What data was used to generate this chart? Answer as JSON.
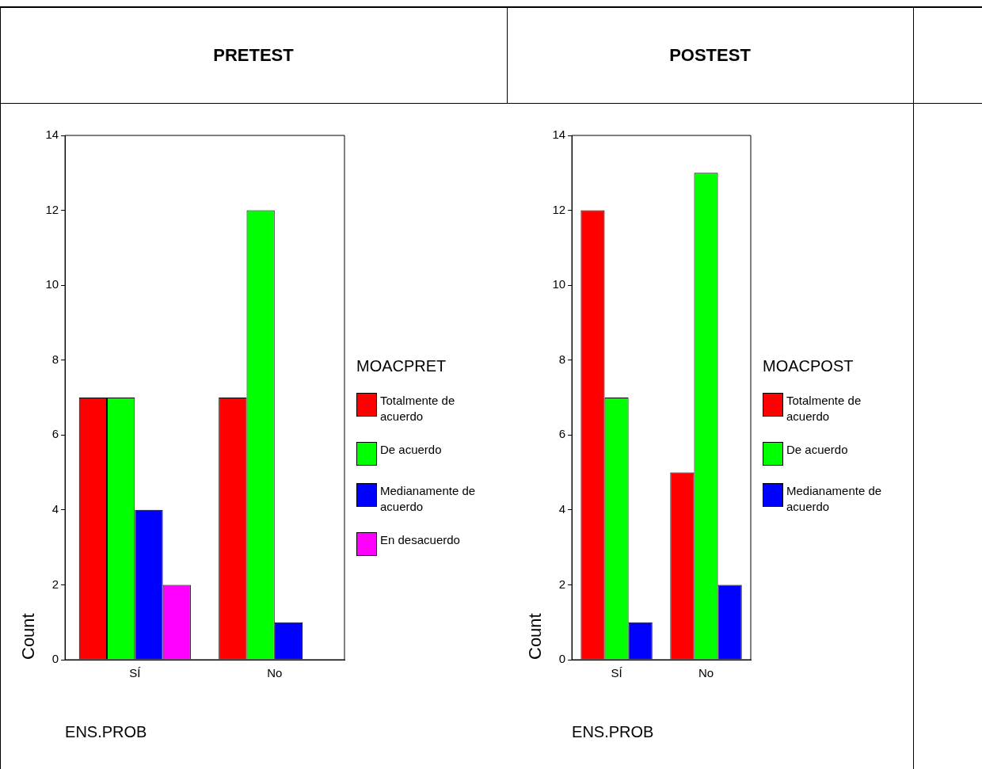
{
  "chart_data": [
    {
      "type": "bar",
      "title": "PRETEST",
      "xlabel": "ENS.PROB",
      "ylabel": "Count",
      "legend_title": "MOACPRET",
      "categories": [
        "SÍ",
        "No"
      ],
      "series": [
        {
          "name": "Totalmente de acuerdo",
          "color": "#ff0000",
          "values": [
            7,
            7
          ]
        },
        {
          "name": "De acuerdo",
          "color": "#00ff00",
          "values": [
            7,
            12
          ]
        },
        {
          "name": "Medianamente de acuerdo",
          "color": "#0000ff",
          "values": [
            4,
            1
          ]
        },
        {
          "name": "En desacuerdo",
          "color": "#ff00ff",
          "values": [
            2,
            null
          ]
        }
      ],
      "ylim": [
        0,
        14
      ],
      "yticks": [
        0,
        2,
        4,
        6,
        8,
        10,
        12,
        14
      ],
      "grid": false,
      "legend": "right"
    },
    {
      "type": "bar",
      "title": "POSTEST",
      "xlabel": "ENS.PROB",
      "ylabel": "Count",
      "legend_title": "MOACPOST",
      "categories": [
        "SÍ",
        "No"
      ],
      "series": [
        {
          "name": "Totalmente de acuerdo",
          "color": "#ff0000",
          "values": [
            12,
            5
          ]
        },
        {
          "name": "De acuerdo",
          "color": "#00ff00",
          "values": [
            7,
            13
          ]
        },
        {
          "name": "Medianamente de acuerdo",
          "color": "#0000ff",
          "values": [
            1,
            2
          ]
        }
      ],
      "ylim": [
        0,
        14
      ],
      "yticks": [
        0,
        2,
        4,
        6,
        8,
        10,
        12,
        14
      ],
      "grid": false,
      "legend": "right"
    }
  ]
}
